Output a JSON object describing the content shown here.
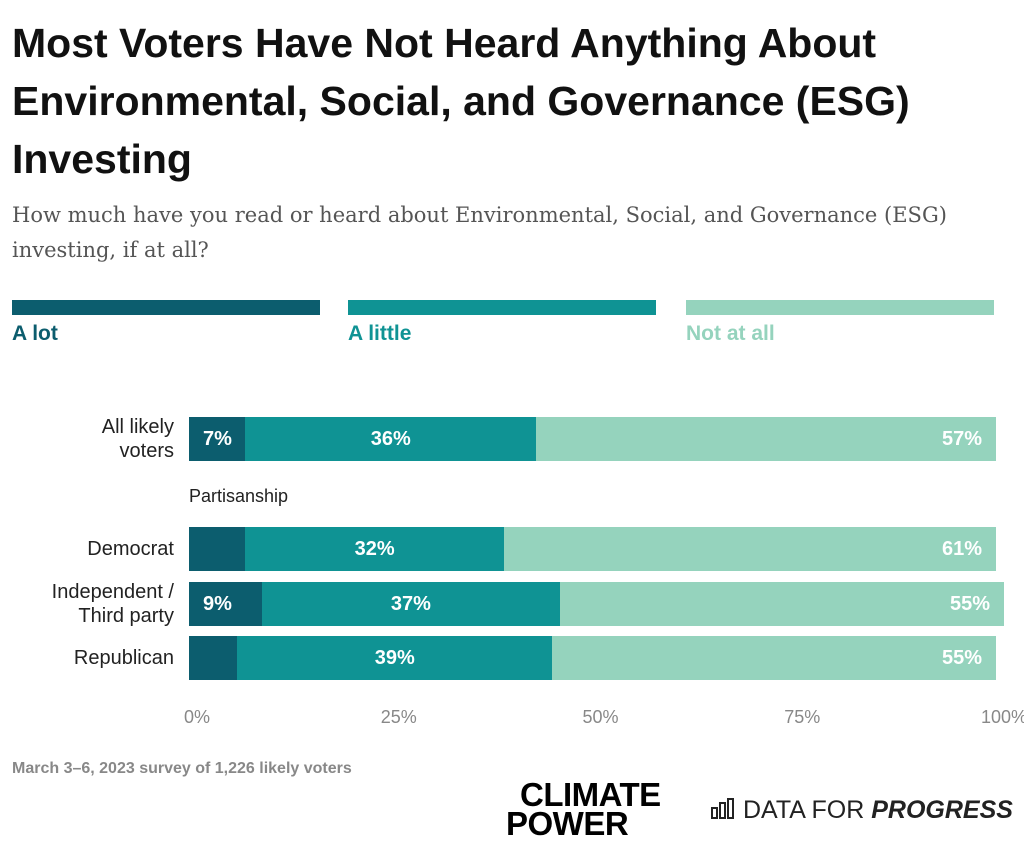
{
  "chart_data": {
    "type": "bar",
    "orientation": "horizontal",
    "stacked": true,
    "title": "Most Voters Have Not Heard Anything About Environmental, Social, and Governance (ESG) Investing",
    "subtitle": "How much have you read or heard about Environmental, Social, and Governance (ESG) investing, if at all?",
    "categories": [
      "All likely voters",
      "Democrat",
      "Independent / Third party",
      "Republican"
    ],
    "group_label": "Partisanship",
    "series": [
      {
        "name": "A lot",
        "color": "#0c5d6e",
        "values": [
          7,
          7,
          9,
          6
        ],
        "value_labels": [
          "7%",
          null,
          "9%",
          null
        ]
      },
      {
        "name": "A little",
        "color": "#0f9394",
        "values": [
          36,
          32,
          37,
          39
        ],
        "value_labels": [
          "36%",
          "32%",
          "37%",
          "39%"
        ]
      },
      {
        "name": "Not at all",
        "color": "#95d3bd",
        "values": [
          57,
          61,
          55,
          55
        ],
        "value_labels": [
          "57%",
          "61%",
          "55%",
          "55%"
        ]
      }
    ],
    "xlim": [
      0,
      100
    ],
    "xticks": [
      {
        "value": 0,
        "label": "0%"
      },
      {
        "value": 25,
        "label": "25%"
      },
      {
        "value": 50,
        "label": "50%"
      },
      {
        "value": 75,
        "label": "75%"
      },
      {
        "value": 100,
        "label": "100%"
      }
    ],
    "note": "March 3–6, 2023 survey of 1,226 likely voters",
    "logos": {
      "climate_power": [
        "CLIMATE",
        "POWER"
      ],
      "data_for_progress": [
        "DATA FOR",
        "PROGRESS"
      ]
    }
  }
}
